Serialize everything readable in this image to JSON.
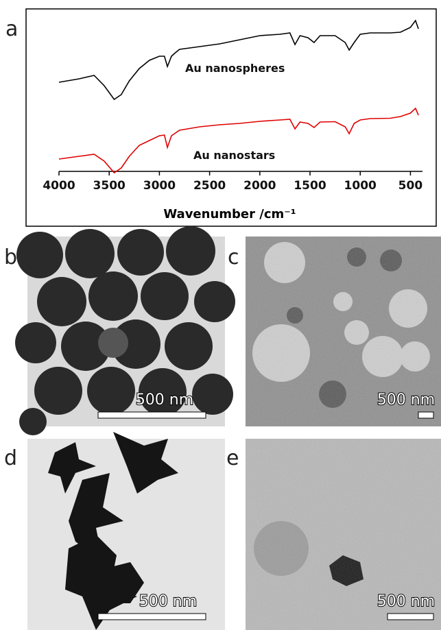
{
  "panel_labels": [
    "a",
    "b",
    "c",
    "d",
    "e"
  ],
  "scale_bars": [
    "500 nm",
    "500 nm",
    "500 nm",
    "500 nm"
  ],
  "chart_data": {
    "type": "line",
    "xlabel": "Wavenumber /cm⁻¹",
    "x": [
      4000,
      3800,
      3650,
      3550,
      3450,
      3380,
      3300,
      3200,
      3100,
      3000,
      2950,
      2920,
      2880,
      2850,
      2800,
      2600,
      2400,
      2200,
      2000,
      1800,
      1700,
      1650,
      1600,
      1520,
      1460,
      1400,
      1250,
      1150,
      1110,
      1060,
      1000,
      900,
      700,
      600,
      500,
      450,
      420
    ],
    "xlim": [
      4000,
      380
    ],
    "xticks": [
      4000,
      3500,
      3000,
      2500,
      2000,
      1500,
      1000,
      500
    ],
    "ylim": [
      0,
      100
    ],
    "series": [
      {
        "name": "Au nanospheres",
        "color": "#000000",
        "values": [
          60,
          62,
          64,
          58,
          50,
          52.8,
          60.8,
          68,
          72.8,
          75.2,
          75.2,
          69.2,
          75.2,
          76.8,
          79.2,
          80.8,
          82.4,
          84.8,
          87.2,
          88,
          88.8,
          82,
          87.2,
          86,
          83.2,
          87.2,
          87.2,
          83.2,
          78.8,
          83.2,
          88,
          88.8,
          88.8,
          89.2,
          92,
          96,
          91.2
        ]
      },
      {
        "name": "Au nanostars",
        "color": "#e00000",
        "values": [
          15.2,
          16.8,
          18,
          14,
          7.2,
          10,
          16.8,
          23.2,
          26,
          28.8,
          29.2,
          22,
          28.8,
          30,
          32,
          34,
          35.2,
          36,
          37.2,
          38,
          38.4,
          32.8,
          36.8,
          36,
          33.6,
          36.8,
          37,
          34,
          30,
          36,
          38,
          38.8,
          39,
          40,
          42,
          44.8,
          40.8
        ]
      }
    ]
  }
}
